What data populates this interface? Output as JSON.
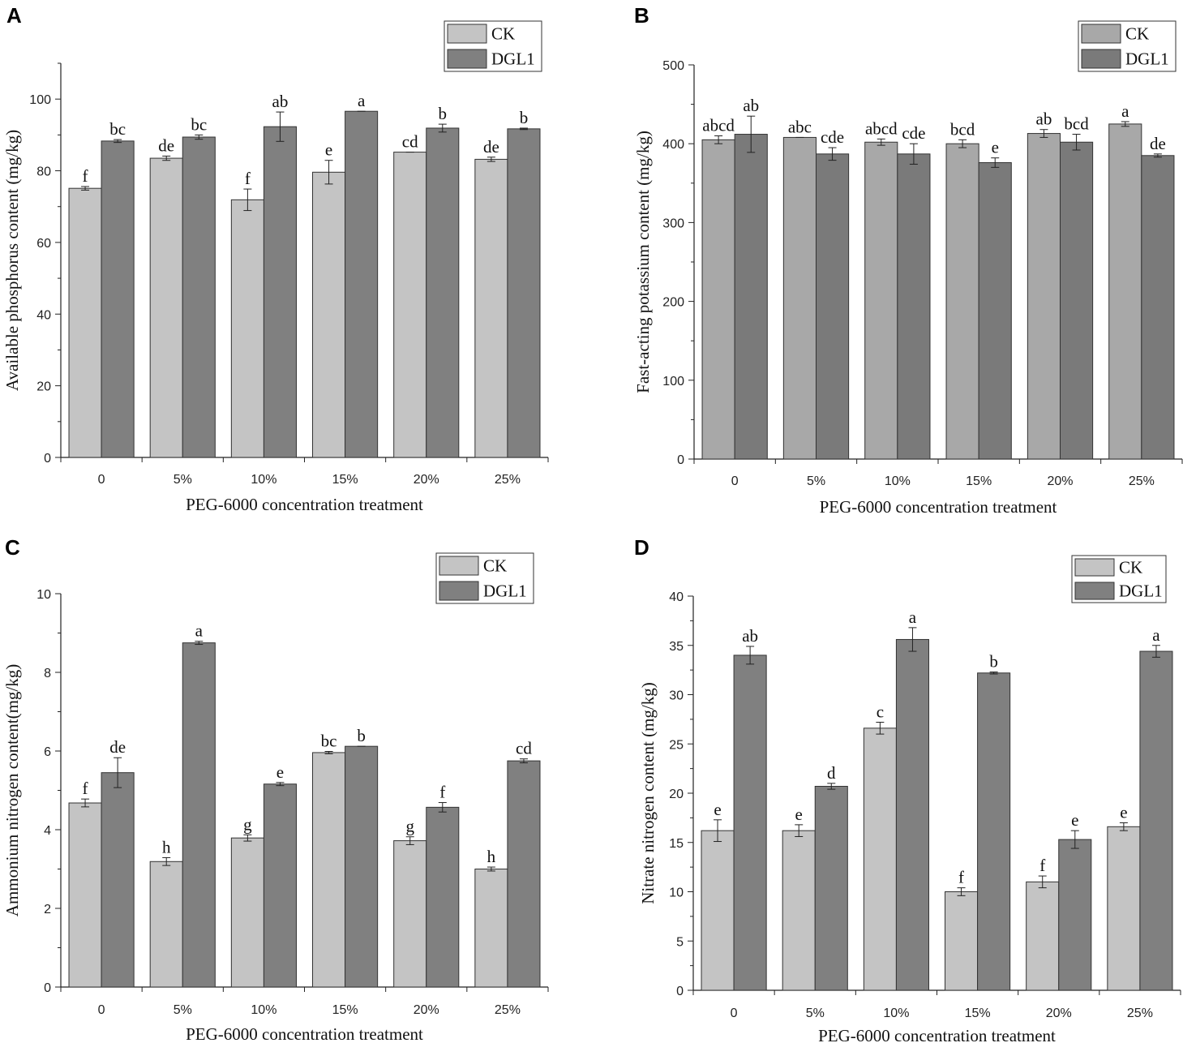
{
  "figure": {
    "xlabel": "PEG-6000 concentration treatment",
    "categories": [
      "0",
      "5%",
      "10%",
      "15%",
      "20%",
      "25%"
    ],
    "legend": [
      "CK",
      "DGL1"
    ]
  },
  "colors": {
    "ck_light": "#c4c4c4",
    "ck_mid": "#a8a8a8",
    "dgl1": "#808080",
    "dgl1_b": "#7a7a7a",
    "axis": "#222222"
  },
  "chart_data": [
    {
      "panel": "A",
      "type": "bar",
      "ylabel": "Available phosphorus content (mg/kg)",
      "xlabel": "PEG-6000 concentration treatment",
      "categories": [
        "0",
        "5%",
        "10%",
        "15%",
        "20%",
        "25%"
      ],
      "ylim": [
        0,
        110
      ],
      "yticks": [
        0,
        20,
        40,
        60,
        80,
        100
      ],
      "series": [
        {
          "name": "CK",
          "values": [
            75.1,
            83.5,
            71.9,
            79.6,
            85.2,
            83.2
          ],
          "errors": [
            0.5,
            0.6,
            3.0,
            3.3,
            0,
            0.6
          ],
          "labels": [
            "f",
            "de",
            "f",
            "e",
            "cd",
            "de"
          ]
        },
        {
          "name": "DGL1",
          "values": [
            88.3,
            89.4,
            92.3,
            96.6,
            91.9,
            91.7
          ],
          "errors": [
            0.4,
            0.6,
            4.1,
            0,
            1.1,
            0.2
          ],
          "labels": [
            "bc",
            "bc",
            "ab",
            "a",
            "b",
            "b"
          ]
        }
      ]
    },
    {
      "panel": "B",
      "type": "bar",
      "ylabel": "Fast-acting potassium content (mg/kg)",
      "xlabel": "PEG-6000 concentration treatment",
      "categories": [
        "0",
        "5%",
        "10%",
        "15%",
        "20%",
        "25%"
      ],
      "ylim": [
        0,
        500
      ],
      "yticks": [
        0,
        100,
        200,
        300,
        400,
        500
      ],
      "series": [
        {
          "name": "CK",
          "values": [
            405,
            408,
            402,
            400,
            413,
            425
          ],
          "errors": [
            5,
            0,
            4,
            5,
            5,
            3
          ],
          "labels": [
            "abcd",
            "abc",
            "abcd",
            "bcd",
            "ab",
            "a"
          ]
        },
        {
          "name": "DGL1",
          "values": [
            412,
            387,
            387,
            376,
            402,
            385
          ],
          "errors": [
            23,
            8,
            13,
            6,
            10,
            2
          ],
          "labels": [
            "ab",
            "cde",
            "cde",
            "e",
            "bcd",
            "de"
          ]
        }
      ]
    },
    {
      "panel": "C",
      "type": "bar",
      "ylabel": "Ammonium nitrogen content(mg/kg)",
      "xlabel": "PEG-6000 concentration treatment",
      "categories": [
        "0",
        "5%",
        "10%",
        "15%",
        "20%",
        "25%"
      ],
      "ylim": [
        0,
        10
      ],
      "yticks": [
        0,
        2,
        4,
        6,
        8,
        10
      ],
      "series": [
        {
          "name": "CK",
          "values": [
            4.68,
            3.19,
            3.79,
            5.96,
            3.72,
            3.0
          ],
          "errors": [
            0.1,
            0.1,
            0.08,
            0.03,
            0.1,
            0.05
          ],
          "labels": [
            "f",
            "h",
            "g",
            "bc",
            "g",
            "h"
          ]
        },
        {
          "name": "DGL1",
          "values": [
            5.45,
            8.75,
            5.16,
            6.12,
            4.57,
            5.75
          ],
          "errors": [
            0.38,
            0.04,
            0.04,
            0,
            0.12,
            0.05
          ],
          "labels": [
            "de",
            "a",
            "e",
            "b",
            "f",
            "cd"
          ]
        }
      ]
    },
    {
      "panel": "D",
      "type": "bar",
      "ylabel": "Nitrate nitrogen content (mg/kg)",
      "xlabel": "PEG-6000 concentration treatment",
      "categories": [
        "0",
        "5%",
        "10%",
        "15%",
        "20%",
        "25%"
      ],
      "ylim": [
        0,
        40
      ],
      "yticks": [
        0,
        5,
        10,
        15,
        20,
        25,
        30,
        35,
        40
      ],
      "series": [
        {
          "name": "CK",
          "values": [
            16.2,
            16.2,
            26.6,
            10.0,
            11.0,
            16.6
          ],
          "errors": [
            1.1,
            0.6,
            0.6,
            0.4,
            0.6,
            0.4
          ],
          "labels": [
            "e",
            "e",
            "c",
            "f",
            "f",
            "e"
          ]
        },
        {
          "name": "DGL1",
          "values": [
            34.0,
            20.7,
            35.6,
            32.2,
            15.3,
            34.4
          ],
          "errors": [
            0.9,
            0.3,
            1.2,
            0.1,
            0.9,
            0.6
          ],
          "labels": [
            "ab",
            "d",
            "a",
            "b",
            "e",
            "a"
          ]
        }
      ]
    }
  ]
}
